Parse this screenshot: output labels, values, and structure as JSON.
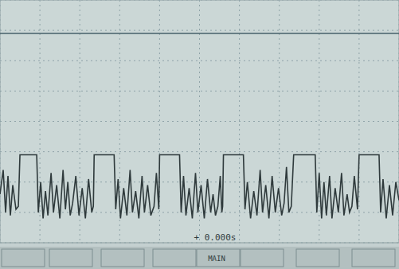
{
  "chart_data": {
    "type": "line",
    "grid": true,
    "tick_labels": false,
    "xlim": [
      0,
      10
    ],
    "ylim": [
      0,
      8
    ],
    "xticks": [
      0,
      1,
      2,
      3,
      4,
      5,
      6,
      7,
      8,
      9,
      10
    ],
    "yticks": [
      0,
      1,
      2,
      3,
      4,
      5,
      6,
      7,
      8
    ],
    "annotations": [
      "+ 0.000s",
      "MAIN"
    ],
    "series": [
      {
        "color": "#2f3a3c",
        "x": [
          0.0,
          0.08,
          0.14,
          0.2,
          0.26,
          0.32,
          0.4,
          0.46,
          0.5,
          0.92,
          0.96,
          1.02,
          1.08,
          1.14,
          1.2,
          1.28,
          1.34,
          1.42,
          1.5,
          1.58,
          1.64,
          1.7,
          1.76,
          1.82,
          1.9,
          1.98,
          2.06,
          2.14,
          2.22,
          2.3,
          2.34,
          2.36,
          2.86,
          2.9,
          2.96,
          3.02,
          3.1,
          3.18,
          3.26,
          3.32,
          3.4,
          3.48,
          3.56,
          3.62,
          3.7,
          3.78,
          3.86,
          3.92,
          3.98,
          4.0,
          4.5,
          4.54,
          4.6,
          4.66,
          4.74,
          4.82,
          4.9,
          4.96,
          5.04,
          5.12,
          5.2,
          5.28,
          5.34,
          5.4,
          5.46,
          5.52,
          5.56,
          5.58,
          5.6,
          6.1,
          6.14,
          6.2,
          6.28,
          6.36,
          6.44,
          6.52,
          6.58,
          6.66,
          6.74,
          6.82,
          6.9,
          6.98,
          7.06,
          7.12,
          7.18,
          7.24,
          7.3,
          7.36,
          7.9,
          7.94,
          8.0,
          8.06,
          8.12,
          8.18,
          8.26,
          8.32,
          8.4,
          8.48,
          8.56,
          8.62,
          8.7,
          8.76,
          8.82,
          8.88,
          8.96,
          9.0,
          9.5,
          9.54,
          9.6,
          9.68,
          9.76,
          9.84,
          9.92,
          10.0
        ],
        "values": [
          1.6,
          2.4,
          1.0,
          2.2,
          0.9,
          1.9,
          1.1,
          1.2,
          2.9,
          2.9,
          1.0,
          2.0,
          0.8,
          1.7,
          0.9,
          2.3,
          1.0,
          1.9,
          0.8,
          2.4,
          1.1,
          2.0,
          0.9,
          1.3,
          2.2,
          0.9,
          1.8,
          0.8,
          2.1,
          1.0,
          1.2,
          2.9,
          2.9,
          1.1,
          2.1,
          0.8,
          1.8,
          0.9,
          2.4,
          1.0,
          1.7,
          0.8,
          2.2,
          1.0,
          1.9,
          0.9,
          1.2,
          2.3,
          1.1,
          2.9,
          2.9,
          1.0,
          2.2,
          0.9,
          1.8,
          0.8,
          2.3,
          1.0,
          1.9,
          0.8,
          2.1,
          1.0,
          1.6,
          0.9,
          1.2,
          2.2,
          1.0,
          1.2,
          2.9,
          2.9,
          1.1,
          2.0,
          0.8,
          1.7,
          0.9,
          2.4,
          1.0,
          1.9,
          0.8,
          2.2,
          1.0,
          1.8,
          0.9,
          1.3,
          2.5,
          1.0,
          1.2,
          2.9,
          2.9,
          1.0,
          2.3,
          0.8,
          2.0,
          0.9,
          2.2,
          0.8,
          1.8,
          1.0,
          2.3,
          0.9,
          1.6,
          1.0,
          1.2,
          2.2,
          1.1,
          2.9,
          2.9,
          1.0,
          2.1,
          0.8,
          1.9,
          0.9,
          2.0,
          1.4
        ]
      },
      {
        "color": "#46606a",
        "x": [
          0,
          10
        ],
        "values": [
          6.9,
          6.9
        ]
      }
    ]
  }
}
